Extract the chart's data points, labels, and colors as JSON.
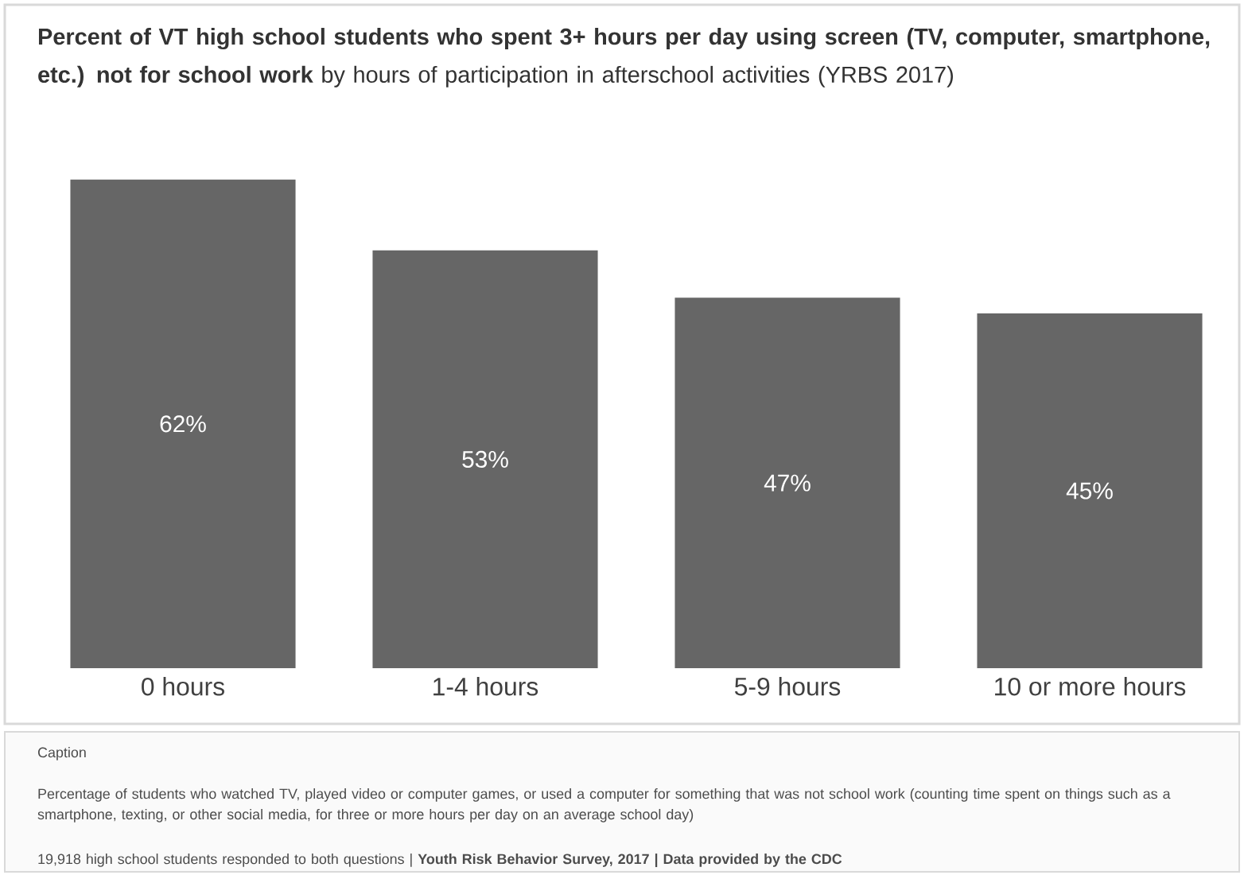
{
  "chart_data": {
    "type": "bar",
    "title": "**Percent of VT high school students who spent 3+ hours per day using screen (TV, computer, smartphone, etc.) not for school work** by hours of participation in afterschool activities (YRBS 2017)",
    "categories": [
      "0 hours",
      "1-4 hours",
      "5-9 hours",
      "10 or more hours"
    ],
    "values": [
      62,
      53,
      47,
      45
    ],
    "value_labels": [
      "62%",
      "53%",
      "47%",
      "45%"
    ],
    "color": "#666666",
    "annotations": [
      "Caption",
      "Percentage of students who watched TV, played video or computer games, or used a computer for something that was not school work (counting time spent on things such as a smartphone, texting, or other social media, for three or more hours per day on an average school day)",
      "19,918 high school students responded to both questions | **Youth Risk Behavior Survey, 2017 | Data provided by the CDC**"
    ]
  }
}
